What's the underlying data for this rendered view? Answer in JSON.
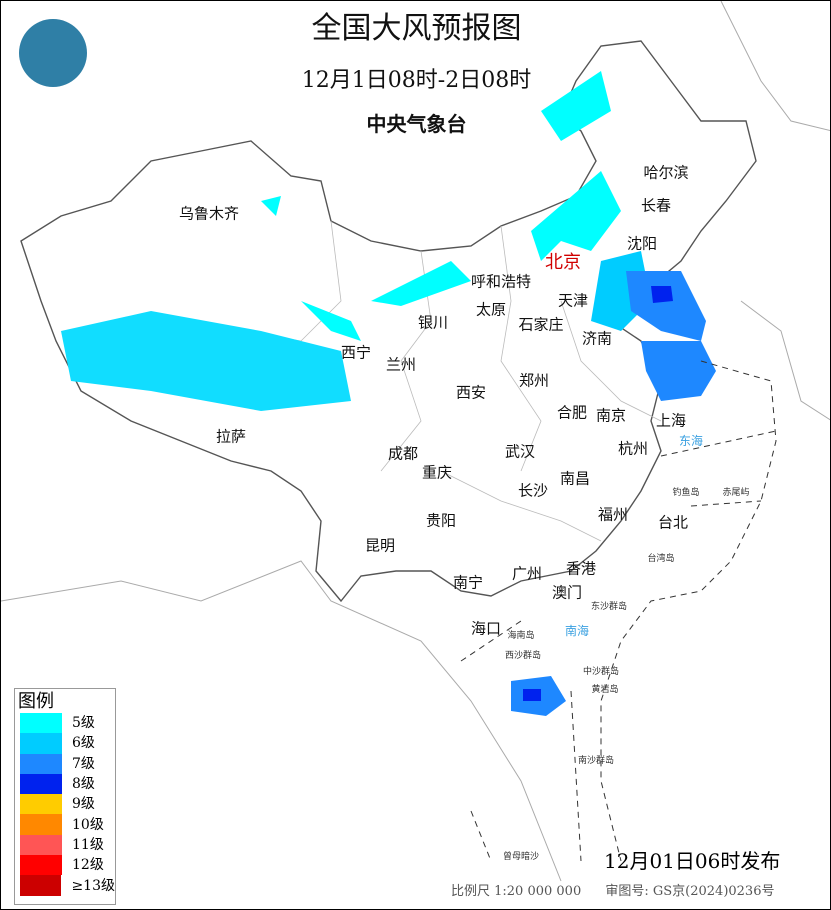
{
  "header": {
    "title": "全国大风预报图",
    "period": "12月1日08时-2日08时",
    "agency": "中央气象台"
  },
  "logo": {
    "icon": "cma-logo"
  },
  "cities": [
    {
      "name": "哈尔滨"
    },
    {
      "name": "长春"
    },
    {
      "name": "沈阳"
    },
    {
      "name": "乌鲁木齐"
    },
    {
      "name": "呼和浩特"
    },
    {
      "name": "北京",
      "capital": true
    },
    {
      "name": "天津"
    },
    {
      "name": "太原"
    },
    {
      "name": "石家庄"
    },
    {
      "name": "济南"
    },
    {
      "name": "银川"
    },
    {
      "name": "西宁"
    },
    {
      "name": "兰州"
    },
    {
      "name": "西安"
    },
    {
      "name": "郑州"
    },
    {
      "name": "合肥"
    },
    {
      "name": "南京"
    },
    {
      "name": "上海"
    },
    {
      "name": "杭州"
    },
    {
      "name": "武汉"
    },
    {
      "name": "拉萨"
    },
    {
      "name": "成都"
    },
    {
      "name": "重庆"
    },
    {
      "name": "南昌"
    },
    {
      "name": "长沙"
    },
    {
      "name": "贵阳"
    },
    {
      "name": "福州"
    },
    {
      "name": "台北"
    },
    {
      "name": "昆明"
    },
    {
      "name": "南宁"
    },
    {
      "name": "广州"
    },
    {
      "name": "香港"
    },
    {
      "name": "澳门"
    },
    {
      "name": "海口"
    }
  ],
  "seas": [
    "东海",
    "南海"
  ],
  "islands": [
    "钓鱼岛",
    "赤尾屿",
    "台湾岛",
    "东沙群岛",
    "海南岛",
    "西沙群岛",
    "中沙群岛",
    "黄岩岛",
    "南沙群岛",
    "曾母暗沙"
  ],
  "legend": {
    "title": "图例",
    "items": [
      {
        "label": "5级",
        "color": "#00ffff"
      },
      {
        "label": "6级",
        "color": "#00ccff"
      },
      {
        "label": "7级",
        "color": "#1e88ff"
      },
      {
        "label": "8级",
        "color": "#0022ee"
      },
      {
        "label": "9级",
        "color": "#ffcc00"
      },
      {
        "label": "10级",
        "color": "#ff8800"
      },
      {
        "label": "11级",
        "color": "#ff5555"
      },
      {
        "label": "12级",
        "color": "#ff0000"
      },
      {
        "label": "≥13级",
        "color": "#cc0000"
      }
    ]
  },
  "issued": "12月01日06时发布",
  "footer": {
    "scale": "比例尺 1:20 000 000",
    "review": "审图号: GS京(2024)0236号"
  }
}
